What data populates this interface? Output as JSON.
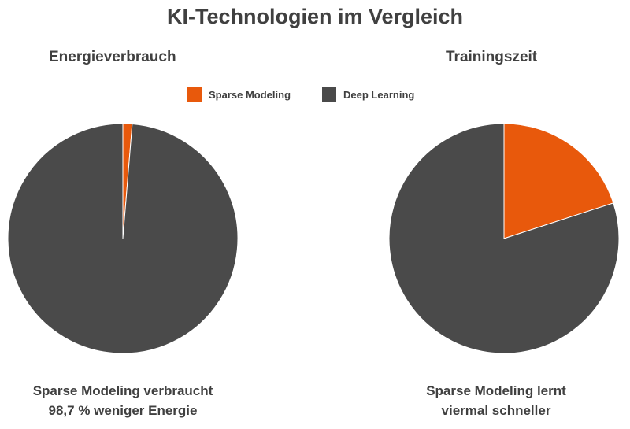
{
  "title": "KI-Technologien im Vergleich",
  "legend": {
    "items": [
      {
        "label": "Sparse Modeling",
        "color": "#e8590c"
      },
      {
        "label": "Deep Learning",
        "color": "#4a4a4a"
      }
    ]
  },
  "chart_data": [
    {
      "type": "pie",
      "title": "Energieverbrauch",
      "categories": [
        "Sparse Modeling",
        "Deep Learning"
      ],
      "values": [
        1.3,
        98.7
      ],
      "colors": [
        "#e8590c",
        "#4a4a4a"
      ],
      "caption": [
        "Sparse Modeling verbraucht",
        "98,7 % weniger Energie"
      ]
    },
    {
      "type": "pie",
      "title": "Trainingszeit",
      "categories": [
        "Sparse Modeling",
        "Deep Learning"
      ],
      "values": [
        20,
        80
      ],
      "colors": [
        "#e8590c",
        "#4a4a4a"
      ],
      "caption": [
        "Sparse Modeling lernt",
        "viermal schneller"
      ]
    }
  ]
}
